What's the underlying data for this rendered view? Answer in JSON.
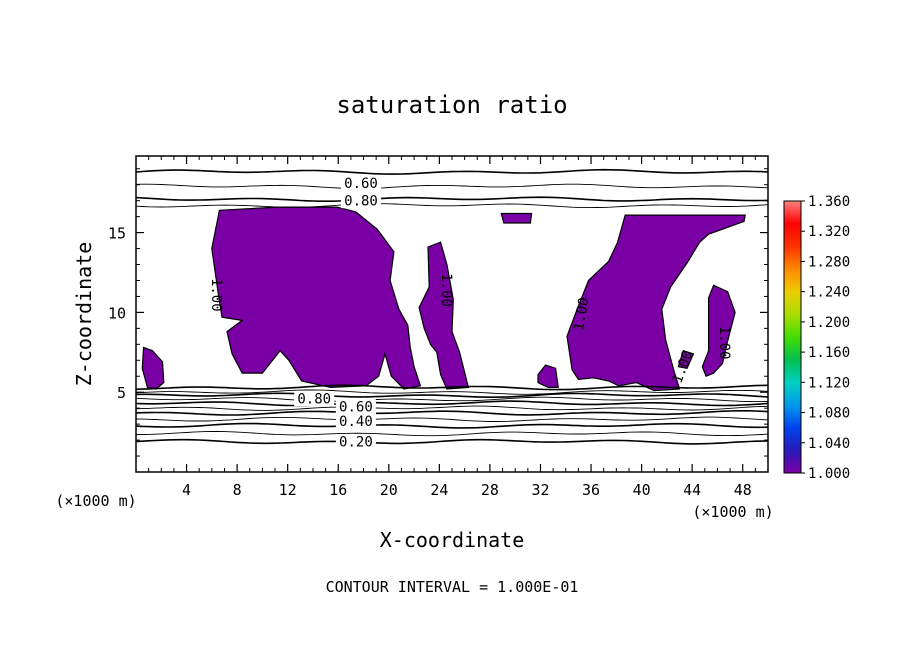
{
  "chart_data": {
    "type": "contour",
    "title": "saturation ratio",
    "xlabel": "X-coordinate",
    "ylabel": "Z-coordinate",
    "x_unit": "(×1000 m)",
    "y_unit": "(×1000 m)",
    "xlim": [
      0,
      50
    ],
    "ylim": [
      0,
      19.8
    ],
    "x_ticks": [
      4,
      8,
      12,
      16,
      20,
      24,
      28,
      32,
      36,
      40,
      44,
      48
    ],
    "y_ticks": [
      5,
      10,
      15
    ],
    "footnote": "CONTOUR INTERVAL = 1.000E-01",
    "colorbar": {
      "min": 1.0,
      "max": 1.36,
      "labels": [
        "1.360",
        "1.320",
        "1.280",
        "1.240",
        "1.200",
        "1.160",
        "1.120",
        "1.080",
        "1.040",
        "1.000"
      ],
      "colors": [
        "#7a00a6",
        "#2a1ab8",
        "#0044ee",
        "#0099ee",
        "#00d0c0",
        "#00c050",
        "#44dd00",
        "#aadd00",
        "#eecc00",
        "#ff8800",
        "#ff3300",
        "#ff0000",
        "#ff8080"
      ]
    },
    "fill_color": "#7a00a6",
    "contour_labels": [
      {
        "text": "0.60",
        "x": 17.8,
        "z": 18.1,
        "rot": 0
      },
      {
        "text": "0.80",
        "x": 17.8,
        "z": 17.0,
        "rot": 0
      },
      {
        "text": "0.80",
        "x": 14.1,
        "z": 4.6,
        "rot": 0
      },
      {
        "text": "0.60",
        "x": 17.4,
        "z": 4.1,
        "rot": 0
      },
      {
        "text": "0.40",
        "x": 17.4,
        "z": 3.2,
        "rot": 0
      },
      {
        "text": "0.20",
        "x": 17.4,
        "z": 1.9,
        "rot": 0
      },
      {
        "text": "1.00",
        "x": 6.4,
        "z": 11.1,
        "rot": 90
      },
      {
        "text": "1.00",
        "x": 24.6,
        "z": 11.4,
        "rot": 90
      },
      {
        "text": "1.00",
        "x": 35.2,
        "z": 9.9,
        "rot": -80
      },
      {
        "text": "1.00",
        "x": 46.6,
        "z": 8.1,
        "rot": 90
      },
      {
        "text": "1.00",
        "x": 43.2,
        "z": 6.6,
        "rot": -70
      }
    ],
    "contour_lines_z": [
      18.8,
      17.9,
      17.1,
      16.7,
      5.3,
      5.0,
      4.8,
      4.55,
      4.3,
      4.0,
      3.7,
      3.3,
      2.9,
      2.4,
      1.9
    ],
    "regions": [
      {
        "name": "small-left-blob",
        "points": [
          [
            0.6,
            7.8
          ],
          [
            1.3,
            7.6
          ],
          [
            2.1,
            6.9
          ],
          [
            2.2,
            5.6
          ],
          [
            1.6,
            5.2
          ],
          [
            0.9,
            5.3
          ],
          [
            0.5,
            6.5
          ]
        ]
      },
      {
        "name": "big-left-region",
        "points": [
          [
            6.6,
            16.4
          ],
          [
            11.2,
            16.6
          ],
          [
            15.9,
            16.6
          ],
          [
            17.4,
            16.3
          ],
          [
            19.1,
            15.2
          ],
          [
            20.4,
            13.8
          ],
          [
            20.1,
            12.0
          ],
          [
            20.8,
            10.2
          ],
          [
            21.5,
            9.2
          ],
          [
            21.7,
            7.8
          ],
          [
            22.0,
            6.6
          ],
          [
            22.5,
            5.4
          ],
          [
            21.2,
            5.2
          ],
          [
            20.2,
            6.0
          ],
          [
            19.7,
            7.4
          ],
          [
            19.2,
            6.0
          ],
          [
            18.2,
            5.4
          ],
          [
            15.4,
            5.3
          ],
          [
            13.1,
            5.7
          ],
          [
            12.1,
            7.0
          ],
          [
            11.4,
            7.6
          ],
          [
            10.0,
            6.2
          ],
          [
            8.4,
            6.2
          ],
          [
            7.6,
            7.4
          ],
          [
            7.2,
            8.8
          ],
          [
            8.4,
            9.5
          ],
          [
            6.8,
            9.7
          ],
          [
            6.5,
            11.2
          ],
          [
            6.0,
            14.0
          ]
        ]
      },
      {
        "name": "central-right-strip",
        "points": [
          [
            23.1,
            14.1
          ],
          [
            24.1,
            14.4
          ],
          [
            24.6,
            13.0
          ],
          [
            25.1,
            10.8
          ],
          [
            25.0,
            8.8
          ],
          [
            25.6,
            7.5
          ],
          [
            26.3,
            5.3
          ],
          [
            24.6,
            5.2
          ],
          [
            24.1,
            6.1
          ],
          [
            23.8,
            7.5
          ],
          [
            23.3,
            8.0
          ],
          [
            22.8,
            9.0
          ],
          [
            22.4,
            10.3
          ],
          [
            23.2,
            11.6
          ]
        ]
      },
      {
        "name": "small-top-center",
        "points": [
          [
            28.9,
            16.2
          ],
          [
            31.3,
            16.2
          ],
          [
            31.2,
            15.6
          ],
          [
            29.1,
            15.6
          ]
        ]
      },
      {
        "name": "right-main-region",
        "points": [
          [
            38.7,
            16.1
          ],
          [
            45.9,
            16.1
          ],
          [
            48.2,
            16.1
          ],
          [
            48.1,
            15.7
          ],
          [
            45.3,
            14.9
          ],
          [
            44.6,
            14.4
          ],
          [
            43.6,
            13.1
          ],
          [
            42.3,
            11.6
          ],
          [
            41.6,
            10.2
          ],
          [
            41.9,
            8.3
          ],
          [
            42.5,
            6.5
          ],
          [
            43.0,
            5.2
          ],
          [
            41.0,
            5.1
          ],
          [
            39.6,
            5.6
          ],
          [
            38.2,
            5.4
          ],
          [
            37.4,
            5.7
          ],
          [
            36.2,
            5.9
          ],
          [
            35.0,
            5.8
          ],
          [
            34.5,
            6.4
          ],
          [
            34.1,
            8.5
          ],
          [
            35.0,
            10.4
          ],
          [
            35.8,
            12.0
          ],
          [
            37.4,
            13.2
          ],
          [
            38.1,
            14.4
          ]
        ]
      },
      {
        "name": "right-lower-blob",
        "points": [
          [
            42.9,
            6.6
          ],
          [
            43.6,
            6.5
          ],
          [
            44.1,
            7.4
          ],
          [
            43.3,
            7.6
          ]
        ]
      },
      {
        "name": "right-tall-blob",
        "points": [
          [
            45.7,
            11.7
          ],
          [
            46.8,
            11.3
          ],
          [
            47.4,
            10.0
          ],
          [
            46.8,
            8.2
          ],
          [
            46.4,
            6.8
          ],
          [
            45.7,
            6.2
          ],
          [
            45.1,
            6.0
          ],
          [
            44.8,
            6.6
          ],
          [
            45.3,
            7.6
          ],
          [
            45.3,
            9.5
          ],
          [
            45.3,
            10.9
          ]
        ]
      },
      {
        "name": "small-mid-blob",
        "points": [
          [
            31.8,
            6.1
          ],
          [
            32.4,
            6.7
          ],
          [
            33.2,
            6.5
          ],
          [
            33.4,
            5.3
          ],
          [
            32.6,
            5.3
          ],
          [
            31.8,
            5.6
          ]
        ]
      }
    ]
  }
}
